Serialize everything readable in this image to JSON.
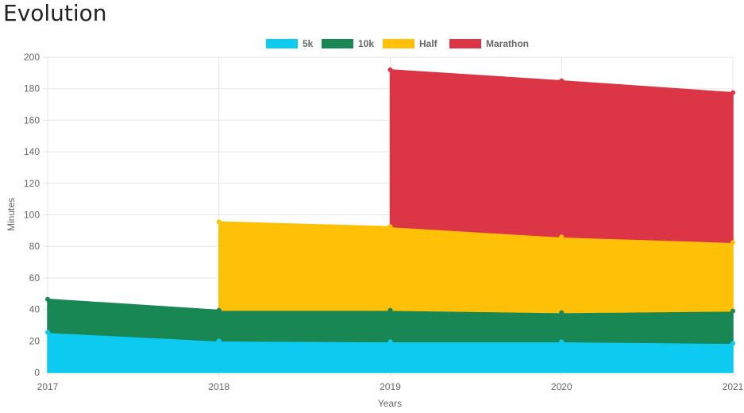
{
  "page": {
    "title": "Evolution"
  },
  "chart_data": {
    "type": "area",
    "stacked": true,
    "categories": [
      "2017",
      "2018",
      "2019",
      "2020",
      "2021"
    ],
    "series": [
      {
        "name": "5k",
        "color": "#0dcaf0",
        "values": [
          25.5,
          20,
          19.5,
          19.5,
          18.5
        ]
      },
      {
        "name": "10k",
        "color": "#198754",
        "values": [
          21,
          19.5,
          20,
          18.5,
          20.5
        ]
      },
      {
        "name": "Half",
        "color": "#ffc107",
        "values": [
          null,
          56,
          53,
          48,
          43.5
        ]
      },
      {
        "name": "Marathon",
        "color": "#dc3545",
        "values": [
          null,
          null,
          99.5,
          99,
          95
        ]
      }
    ],
    "xlabel": "Years",
    "ylabel": "Minutes",
    "ylim": [
      0,
      200
    ],
    "yticks": [
      0,
      20,
      40,
      60,
      80,
      100,
      120,
      140,
      160,
      180,
      200
    ],
    "grid": true,
    "legend_position": "top"
  }
}
